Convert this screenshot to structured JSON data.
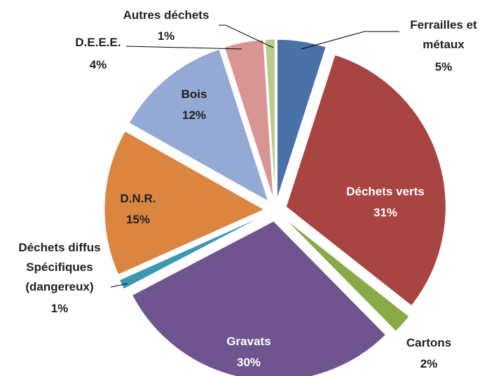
{
  "chart_data": {
    "type": "pie",
    "categories": [
      "Ferrailles et métaux",
      "Déchets verts",
      "Cartons",
      "Gravats",
      "Déchets diffus Spécifiques (dangereux)",
      "D.N.R.",
      "Bois",
      "D.E.E.E.",
      "Autres déchets"
    ],
    "values": [
      5,
      31,
      2,
      30,
      1,
      15,
      12,
      4,
      1
    ],
    "value_labels": [
      "5%",
      "31%",
      "2%",
      "30%",
      "1%",
      "15%",
      "12%",
      "4%",
      "1%"
    ],
    "colors": [
      "#4a72a8",
      "#a84442",
      "#8aaa48",
      "#70548f",
      "#3a98b0",
      "#dc8540",
      "#94a9d4",
      "#d99594",
      "#b8cc90"
    ]
  }
}
